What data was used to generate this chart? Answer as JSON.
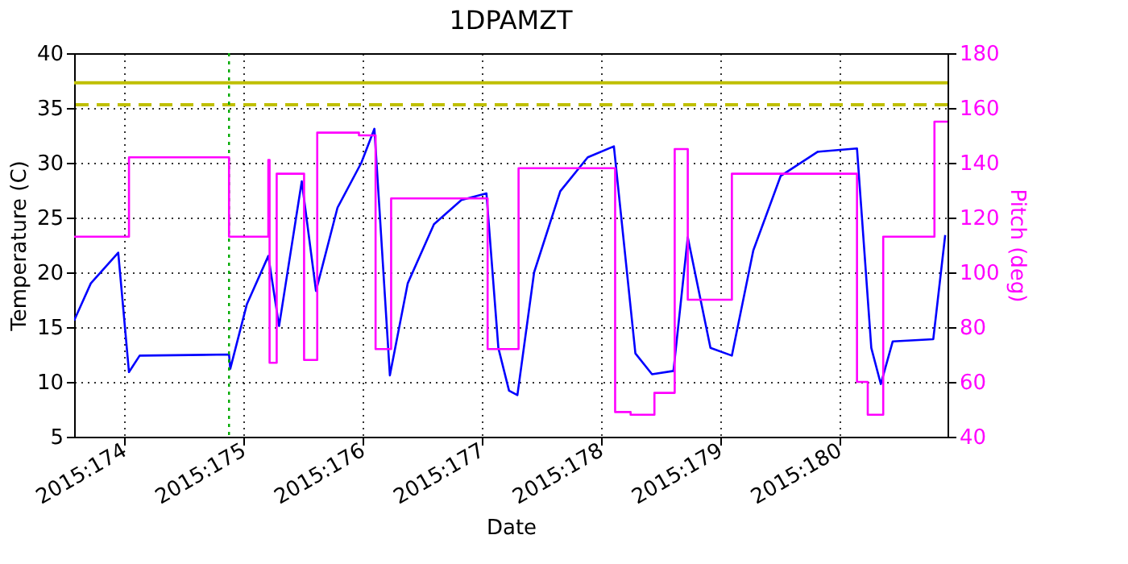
{
  "chart_data": {
    "type": "line",
    "title": "1DPAMZT",
    "xlabel": "Date",
    "ylabel": "Temperature (C)",
    "y2label": "Pitch (deg)",
    "xlim": [
      "2015-06-22T13:55",
      "2015-06-29T21:50"
    ],
    "xticks": [
      {
        "value": "2015-06-23",
        "label": "2015:174"
      },
      {
        "value": "2015-06-24",
        "label": "2015:175"
      },
      {
        "value": "2015-06-25",
        "label": "2015:176"
      },
      {
        "value": "2015-06-26",
        "label": "2015:177"
      },
      {
        "value": "2015-06-27",
        "label": "2015:178"
      },
      {
        "value": "2015-06-28",
        "label": "2015:179"
      },
      {
        "value": "2015-06-29",
        "label": "2015:180"
      }
    ],
    "ylim": [
      5,
      40
    ],
    "yticks": [
      5,
      10,
      15,
      20,
      25,
      30,
      35,
      40
    ],
    "y2lim": [
      40,
      180
    ],
    "y2ticks": [
      40,
      60,
      80,
      100,
      120,
      140,
      160,
      180
    ],
    "grid": true,
    "marker": "none",
    "series": [
      {
        "color": "#0000ff",
        "x": [
          "2015-06-22T13:55",
          "2015-06-22T17:17",
          "2015-06-22T22:48",
          "2015-06-23T00:58",
          "2015-06-23T03:07",
          "2015-06-23T21:07",
          "2015-06-23T21:22",
          "2015-06-24T00:43",
          "2015-06-24T05:02",
          "2015-06-24T07:12",
          "2015-06-24T11:46",
          "2015-06-24T14:38",
          "2015-06-24T18:58",
          "2015-06-24T23:46",
          "2015-06-25T02:24",
          "2015-06-25T05:31",
          "2015-06-25T09:07",
          "2015-06-25T14:24",
          "2015-06-25T19:55",
          "2015-06-26T00:58",
          "2015-06-26T03:22",
          "2015-06-26T05:31",
          "2015-06-26T07:12",
          "2015-06-26T10:34",
          "2015-06-26T15:50",
          "2015-06-26T21:22",
          "2015-06-27T02:38",
          "2015-06-27T06:58",
          "2015-06-27T10:19",
          "2015-06-27T14:38",
          "2015-06-27T17:31",
          "2015-06-27T22:05",
          "2015-06-28T02:24",
          "2015-06-28T06:43",
          "2015-06-28T12:14",
          "2015-06-28T19:41",
          "2015-06-29T03:36",
          "2015-06-29T06:29",
          "2015-06-29T08:24",
          "2015-06-29T10:48",
          "2015-06-29T18:58",
          "2015-06-29T21:22"
        ],
        "values": [
          15.6,
          19.0,
          21.8,
          10.9,
          12.4,
          12.5,
          11.2,
          17.1,
          21.5,
          15.1,
          28.3,
          18.3,
          25.9,
          30.0,
          33.1,
          10.6,
          19.0,
          24.4,
          26.6,
          27.2,
          13.1,
          9.2,
          8.8,
          20.0,
          27.4,
          30.5,
          31.5,
          12.6,
          10.7,
          11.0,
          23.2,
          13.1,
          12.4,
          22.0,
          28.8,
          31.0,
          31.3,
          13.1,
          9.8,
          13.7,
          13.9,
          23.4
        ]
      },
      {
        "type": "step",
        "axis": "y2",
        "color": "#ff00ff",
        "x": [
          "2015-06-22T13:55",
          "2015-06-23T00:58",
          "2015-06-23T21:07",
          "2015-06-24T05:02",
          "2015-06-24T05:17",
          "2015-06-24T06:43",
          "2015-06-24T12:14",
          "2015-06-24T14:53",
          "2015-06-24T23:17",
          "2015-06-25T02:38",
          "2015-06-25T05:46",
          "2015-06-26T01:12",
          "2015-06-26T07:26",
          "2015-06-27T02:53",
          "2015-06-27T06:00",
          "2015-06-27T10:19",
          "2015-06-27T10:48",
          "2015-06-27T14:53",
          "2015-06-27T17:31",
          "2015-06-28T02:24",
          "2015-06-29T03:36",
          "2015-06-29T05:46",
          "2015-06-29T08:53",
          "2015-06-29T19:12",
          "2015-06-29T21:50"
        ],
        "values": [
          113,
          142,
          113,
          141,
          67,
          136,
          68,
          151,
          150,
          72,
          127,
          72,
          138,
          49,
          48,
          48,
          56,
          145,
          90,
          136,
          60,
          48,
          113,
          155,
          155
        ]
      }
    ],
    "ref_lines": [
      {
        "axis": "y",
        "value": 37.3,
        "color": "#bfbf00",
        "line_style": "solid"
      },
      {
        "axis": "y",
        "value": 35.3,
        "color": "#bfbf00",
        "line_style": "dashed"
      },
      {
        "axis": "x",
        "value": "2015-06-23T21:07",
        "color": "#00aa00",
        "line_style": "dotted"
      }
    ]
  }
}
